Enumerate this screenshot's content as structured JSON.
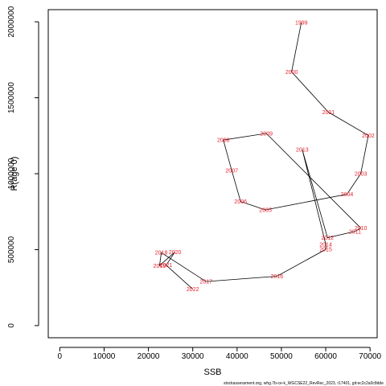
{
  "chart_data": {
    "type": "scatter",
    "xlabel": "SSB",
    "ylabel": "R(age 0)",
    "xlim": [
      -2600,
      71600
    ],
    "ylim": [
      -80000,
      2080000
    ],
    "xticks": [
      "0",
      "10000",
      "20000",
      "30000",
      "40000",
      "50000",
      "60000",
      "70000"
    ],
    "yticks": [
      "0",
      "500000",
      "1000000",
      "1500000",
      "2000000"
    ],
    "xtick_values": [
      0,
      10000,
      20000,
      30000,
      40000,
      50000,
      60000,
      70000
    ],
    "ytick_values": [
      0,
      500000,
      1000000,
      1500000,
      2000000
    ],
    "connect_points": true,
    "line_color": "#000000",
    "label_color": "#e8202a",
    "points": [
      {
        "label": "1999",
        "x": 54500,
        "y": 1995000
      },
      {
        "label": "2000",
        "x": 52300,
        "y": 1670000
      },
      {
        "label": "2001",
        "x": 60600,
        "y": 1405000
      },
      {
        "label": "2002",
        "x": 69600,
        "y": 1252000
      },
      {
        "label": "2003",
        "x": 67900,
        "y": 1000000
      },
      {
        "label": "2004",
        "x": 64800,
        "y": 865000
      },
      {
        "label": "2005",
        "x": 46400,
        "y": 762000
      },
      {
        "label": "2006",
        "x": 40800,
        "y": 817000
      },
      {
        "label": "2007",
        "x": 38800,
        "y": 1020000
      },
      {
        "label": "2008",
        "x": 36900,
        "y": 1222000
      },
      {
        "label": "2009",
        "x": 46600,
        "y": 1265000
      },
      {
        "label": "2010",
        "x": 67900,
        "y": 642000
      },
      {
        "label": "2011",
        "x": 66600,
        "y": 620000
      },
      {
        "label": "2012",
        "x": 60400,
        "y": 578000
      },
      {
        "label": "2013",
        "x": 54700,
        "y": 1160000
      },
      {
        "label": "2014",
        "x": 60000,
        "y": 535000
      },
      {
        "label": "2015",
        "x": 60000,
        "y": 502000
      },
      {
        "label": "2016",
        "x": 49000,
        "y": 325000
      },
      {
        "label": "2017",
        "x": 33000,
        "y": 290000
      },
      {
        "label": "2018",
        "x": 22900,
        "y": 480000
      },
      {
        "label": "2019",
        "x": 22500,
        "y": 395000
      },
      {
        "label": "2020",
        "x": 26000,
        "y": 485000
      },
      {
        "label": "2021",
        "x": 24000,
        "y": 398000
      },
      {
        "label": "2022",
        "x": 30000,
        "y": 240000
      }
    ]
  },
  "footer_text": "stockassessment.org, whg.7b-ce-k_WGCSE22_RevRec_2023, r17401, git:ec2c2a0c8dde"
}
